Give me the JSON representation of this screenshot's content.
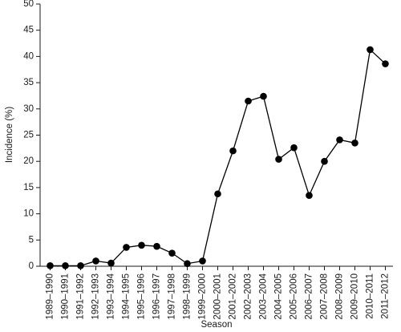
{
  "chart_data": {
    "type": "line",
    "x_label": "Season",
    "y_label": "Incidence (%)",
    "categories": [
      "1989–1990",
      "1990–1991",
      "1991–1992",
      "1992–1993",
      "1993–1994",
      "1994–1995",
      "1995–1996",
      "1996–1997",
      "1997–1998",
      "1998–1999",
      "1999–2000",
      "2000–2001",
      "2001–2002",
      "2002–2003",
      "2003–2004",
      "2004–2005",
      "2005–2006",
      "2006–2007",
      "2007–2008",
      "2008–2009",
      "2009–2010",
      "2010–2011",
      "2011–2012"
    ],
    "values": [
      0.1,
      0.1,
      0.1,
      1.0,
      0.6,
      3.6,
      4.0,
      3.8,
      2.5,
      0.5,
      1.0,
      13.8,
      22.0,
      31.5,
      32.4,
      20.4,
      22.6,
      13.5,
      20.0,
      24.1,
      23.5,
      41.3,
      38.6
    ],
    "color": "#000000",
    "ylim": [
      0,
      50
    ],
    "yticks": [
      0,
      5,
      10,
      15,
      20,
      25,
      30,
      35,
      40,
      45,
      50
    ],
    "grid": false
  }
}
